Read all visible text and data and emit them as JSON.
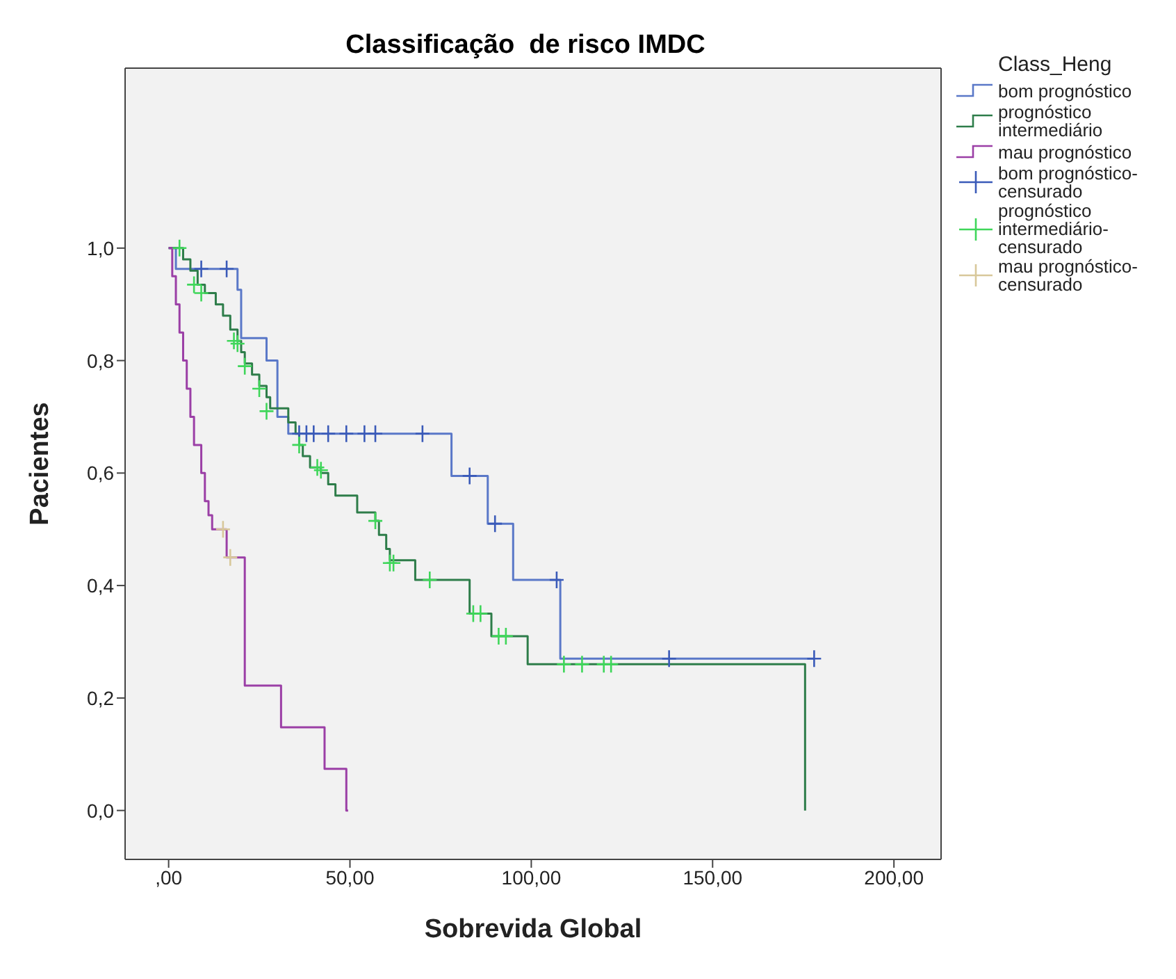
{
  "chart_data": {
    "type": "step",
    "title": "Classificação  de risco IMDC",
    "xlabel": "Sobrevida Global",
    "ylabel": "Pacientes",
    "legend_title": "Class_Heng",
    "legend": "top right",
    "grid": false,
    "xlim": [
      -12,
      213
    ],
    "xticks": [
      {
        "value": 0,
        "label": ",00"
      },
      {
        "value": 50,
        "label": "50,00"
      },
      {
        "value": 100,
        "label": "100,00"
      },
      {
        "value": 150,
        "label": "150,00"
      },
      {
        "value": 200,
        "label": "200,00"
      }
    ],
    "ylim": [
      -0.087,
      1.32
    ],
    "yticks": [
      {
        "value": 0,
        "label": "0,0"
      },
      {
        "value": 0.2,
        "label": "0,2"
      },
      {
        "value": 0.4,
        "label": "0,4"
      },
      {
        "value": 0.6,
        "label": "0,6"
      },
      {
        "value": 0.8,
        "label": "0,8"
      },
      {
        "value": 1.0,
        "label": "1,0"
      }
    ],
    "series": [
      {
        "name": "bom prognóstico",
        "color": "#5a78c8",
        "marker": "none",
        "x": [
          0,
          2,
          19,
          20,
          27,
          30,
          33,
          78,
          88,
          95,
          108,
          178
        ],
        "values": [
          1.0,
          0.963,
          0.926,
          0.84,
          0.8,
          0.7,
          0.67,
          0.595,
          0.51,
          0.41,
          0.27,
          0.27
        ]
      },
      {
        "name": "prognóstico intermediário",
        "color": "#2e7d4a",
        "marker": "none",
        "x": [
          0,
          4,
          6,
          8,
          10,
          13,
          15,
          17,
          19,
          20,
          21,
          23,
          25,
          27,
          28,
          33,
          35,
          36,
          37,
          39,
          42,
          44,
          46,
          52,
          57,
          58,
          60,
          61,
          68,
          83,
          89,
          99,
          175,
          175.5
        ],
        "values": [
          1.0,
          0.98,
          0.96,
          0.935,
          0.92,
          0.9,
          0.88,
          0.855,
          0.835,
          0.815,
          0.795,
          0.775,
          0.755,
          0.735,
          0.715,
          0.69,
          0.67,
          0.65,
          0.63,
          0.61,
          0.6,
          0.58,
          0.56,
          0.53,
          0.515,
          0.49,
          0.465,
          0.445,
          0.41,
          0.35,
          0.31,
          0.26,
          0.26,
          0.0
        ]
      },
      {
        "name": "mau prognóstico",
        "color": "#9b3fa6",
        "marker": "none",
        "x": [
          0,
          1,
          2,
          3,
          4,
          5,
          6,
          7,
          9,
          10,
          11,
          12,
          16,
          21,
          31,
          43,
          49,
          49.5
        ],
        "values": [
          1.0,
          0.95,
          0.9,
          0.85,
          0.8,
          0.75,
          0.7,
          0.65,
          0.6,
          0.55,
          0.525,
          0.5,
          0.45,
          0.222,
          0.148,
          0.074,
          0.0,
          0.0
        ]
      },
      {
        "name": "bom prognóstico-censurado",
        "type": "scatter",
        "color": "#3a5ab8",
        "marker": "cross",
        "x": [
          9,
          16,
          36,
          38,
          40,
          44,
          49,
          54,
          57,
          70,
          83,
          90,
          107,
          138,
          178
        ],
        "values": [
          0.963,
          0.963,
          0.67,
          0.67,
          0.67,
          0.67,
          0.67,
          0.67,
          0.67,
          0.67,
          0.595,
          0.51,
          0.41,
          0.27,
          0.27
        ]
      },
      {
        "name": "prognóstico intermediário-censurado",
        "type": "scatter",
        "color": "#3fd65a",
        "marker": "cross",
        "x": [
          3,
          7,
          9,
          18,
          19,
          21,
          25,
          27,
          36,
          41,
          42,
          57,
          61,
          62,
          72,
          84,
          86,
          91,
          93,
          109,
          114,
          120,
          122
        ],
        "values": [
          1.0,
          0.935,
          0.92,
          0.835,
          0.83,
          0.79,
          0.75,
          0.71,
          0.65,
          0.61,
          0.605,
          0.515,
          0.44,
          0.44,
          0.41,
          0.35,
          0.35,
          0.31,
          0.31,
          0.26,
          0.26,
          0.26,
          0.26
        ]
      },
      {
        "name": "mau prognóstico-censurado",
        "type": "scatter",
        "color": "#d8c89a",
        "marker": "cross",
        "x": [
          15,
          17
        ],
        "values": [
          0.5,
          0.45
        ]
      }
    ]
  }
}
